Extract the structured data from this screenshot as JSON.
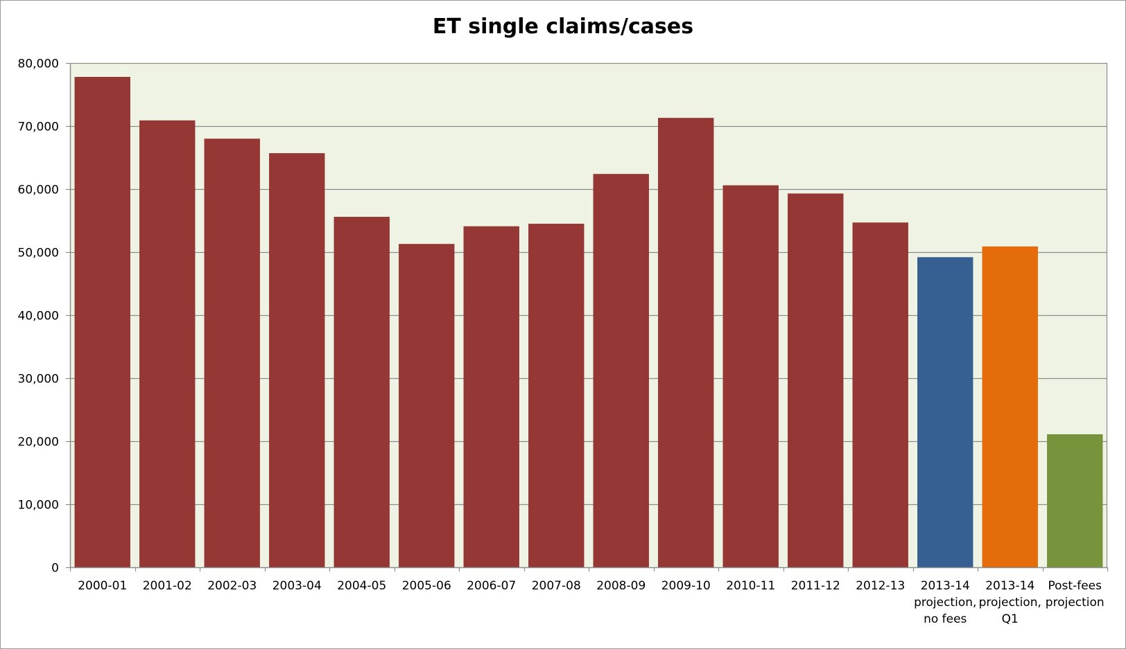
{
  "chart_data": {
    "type": "bar",
    "title": "ET single claims/cases",
    "xlabel": "",
    "ylabel": "",
    "ylim": [
      0,
      80000
    ],
    "yticks": [
      0,
      10000,
      20000,
      30000,
      40000,
      50000,
      60000,
      70000,
      80000
    ],
    "ytick_labels": [
      "0",
      "10,000",
      "20,000",
      "30,000",
      "40,000",
      "50,000",
      "60,000",
      "70,000",
      "80,000"
    ],
    "grid": true,
    "plot_background": "#eef3e3",
    "categories": [
      [
        "2000-01"
      ],
      [
        "2001-02"
      ],
      [
        "2002-03"
      ],
      [
        "2003-04"
      ],
      [
        "2004-05"
      ],
      [
        "2005-06"
      ],
      [
        "2006-07"
      ],
      [
        "2007-08"
      ],
      [
        "2008-09"
      ],
      [
        "2009-10"
      ],
      [
        "2010-11"
      ],
      [
        "2011-12"
      ],
      [
        "2012-13"
      ],
      [
        "2013-14",
        "projection,",
        "no fees"
      ],
      [
        "2013-14",
        "projection,",
        "Q1"
      ],
      [
        "Post-fees",
        "projection"
      ]
    ],
    "values": [
      77800,
      70900,
      68000,
      65700,
      55600,
      51300,
      54100,
      54500,
      62400,
      71300,
      60600,
      59300,
      54700,
      49200,
      50900,
      21100
    ],
    "colors": [
      "#953735",
      "#953735",
      "#953735",
      "#953735",
      "#953735",
      "#953735",
      "#953735",
      "#953735",
      "#953735",
      "#953735",
      "#953735",
      "#953735",
      "#953735",
      "#376092",
      "#e46c0a",
      "#77933c"
    ]
  }
}
